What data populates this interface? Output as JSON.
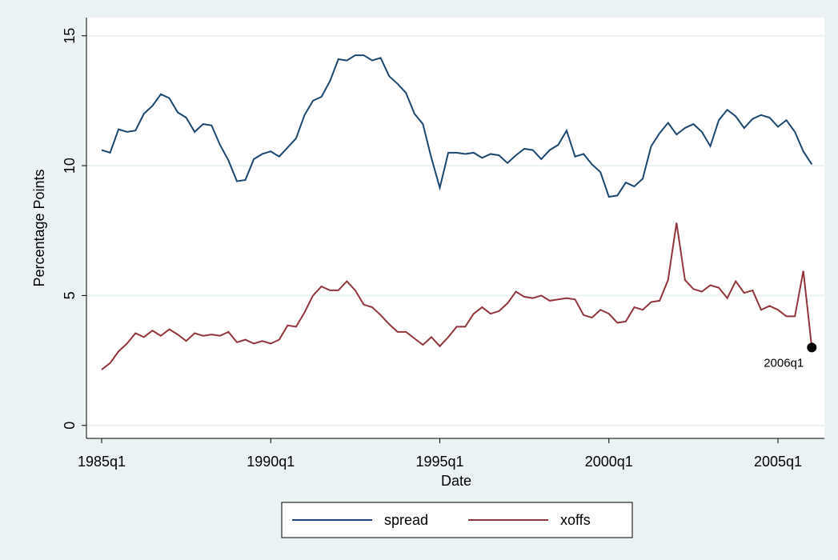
{
  "chart_data": {
    "type": "line",
    "x_label": "Date",
    "y_label": "Percentage Points",
    "categories": [
      "1985q1",
      "1985q2",
      "1985q3",
      "1985q4",
      "1986q1",
      "1986q2",
      "1986q3",
      "1986q4",
      "1987q1",
      "1987q2",
      "1987q3",
      "1987q4",
      "1988q1",
      "1988q2",
      "1988q3",
      "1988q4",
      "1989q1",
      "1989q2",
      "1989q3",
      "1989q4",
      "1990q1",
      "1990q2",
      "1990q3",
      "1990q4",
      "1991q1",
      "1991q2",
      "1991q3",
      "1991q4",
      "1992q1",
      "1992q2",
      "1992q3",
      "1992q4",
      "1993q1",
      "1993q2",
      "1993q3",
      "1993q4",
      "1994q1",
      "1994q2",
      "1994q3",
      "1994q4",
      "1995q1",
      "1995q2",
      "1995q3",
      "1995q4",
      "1996q1",
      "1996q2",
      "1996q3",
      "1996q4",
      "1997q1",
      "1997q2",
      "1997q3",
      "1997q4",
      "1998q1",
      "1998q2",
      "1998q3",
      "1998q4",
      "1999q1",
      "1999q2",
      "1999q3",
      "1999q4",
      "2000q1",
      "2000q2",
      "2000q3",
      "2000q4",
      "2001q1",
      "2001q2",
      "2001q3",
      "2001q4",
      "2002q1",
      "2002q2",
      "2002q3",
      "2002q4",
      "2003q1",
      "2003q2",
      "2003q3",
      "2003q4",
      "2004q1",
      "2004q2",
      "2004q3",
      "2004q4",
      "2005q1",
      "2005q2",
      "2005q3",
      "2005q4",
      "2006q1"
    ],
    "series": [
      {
        "name": "spread",
        "color": "#1a476f",
        "values": [
          10.6,
          10.5,
          11.4,
          11.3,
          11.35,
          12.0,
          12.3,
          12.75,
          12.6,
          12.05,
          11.85,
          11.3,
          11.6,
          11.55,
          10.8,
          10.2,
          9.4,
          9.45,
          10.25,
          10.45,
          10.55,
          10.35,
          10.7,
          11.05,
          11.95,
          12.5,
          12.65,
          13.25,
          14.1,
          14.05,
          14.25,
          14.25,
          14.05,
          14.15,
          13.45,
          13.15,
          12.8,
          12.0,
          11.6,
          10.3,
          9.15,
          10.5,
          10.5,
          10.45,
          10.5,
          10.3,
          10.45,
          10.4,
          10.1,
          10.4,
          10.65,
          10.6,
          10.25,
          10.6,
          10.8,
          11.35,
          10.35,
          10.45,
          10.05,
          9.75,
          8.8,
          8.85,
          9.35,
          9.2,
          9.5,
          10.75,
          11.25,
          11.65,
          11.2,
          11.45,
          11.6,
          11.3,
          10.75,
          11.75,
          12.15,
          11.9,
          11.45,
          11.8,
          11.95,
          11.85,
          11.5,
          11.75,
          11.3,
          10.55,
          10.05
        ]
      },
      {
        "name": "xoffs",
        "color": "#90353b",
        "values": [
          2.15,
          2.4,
          2.85,
          3.15,
          3.55,
          3.4,
          3.65,
          3.45,
          3.7,
          3.5,
          3.25,
          3.55,
          3.45,
          3.5,
          3.45,
          3.6,
          3.2,
          3.3,
          3.15,
          3.25,
          3.15,
          3.3,
          3.85,
          3.8,
          4.35,
          5.0,
          5.35,
          5.2,
          5.2,
          5.55,
          5.2,
          4.65,
          4.55,
          4.25,
          3.9,
          3.6,
          3.6,
          3.35,
          3.1,
          3.4,
          3.05,
          3.4,
          3.8,
          3.8,
          4.3,
          4.55,
          4.3,
          4.4,
          4.7,
          5.15,
          4.95,
          4.9,
          5.0,
          4.8,
          4.85,
          4.9,
          4.85,
          4.25,
          4.15,
          4.45,
          4.3,
          3.95,
          4.0,
          4.55,
          4.45,
          4.75,
          4.8,
          5.6,
          7.8,
          5.6,
          5.25,
          5.15,
          5.4,
          5.3,
          4.9,
          5.55,
          5.1,
          5.2,
          4.45,
          4.6,
          4.45,
          4.2,
          4.2,
          5.95,
          3.0
        ]
      }
    ],
    "xticks": [
      "1985q1",
      "1990q1",
      "1995q1",
      "2000q1",
      "2005q1"
    ],
    "ylim": [
      -0.5,
      15.7
    ],
    "yticks": [
      0,
      5,
      10,
      15
    ],
    "grid": true
  }
}
